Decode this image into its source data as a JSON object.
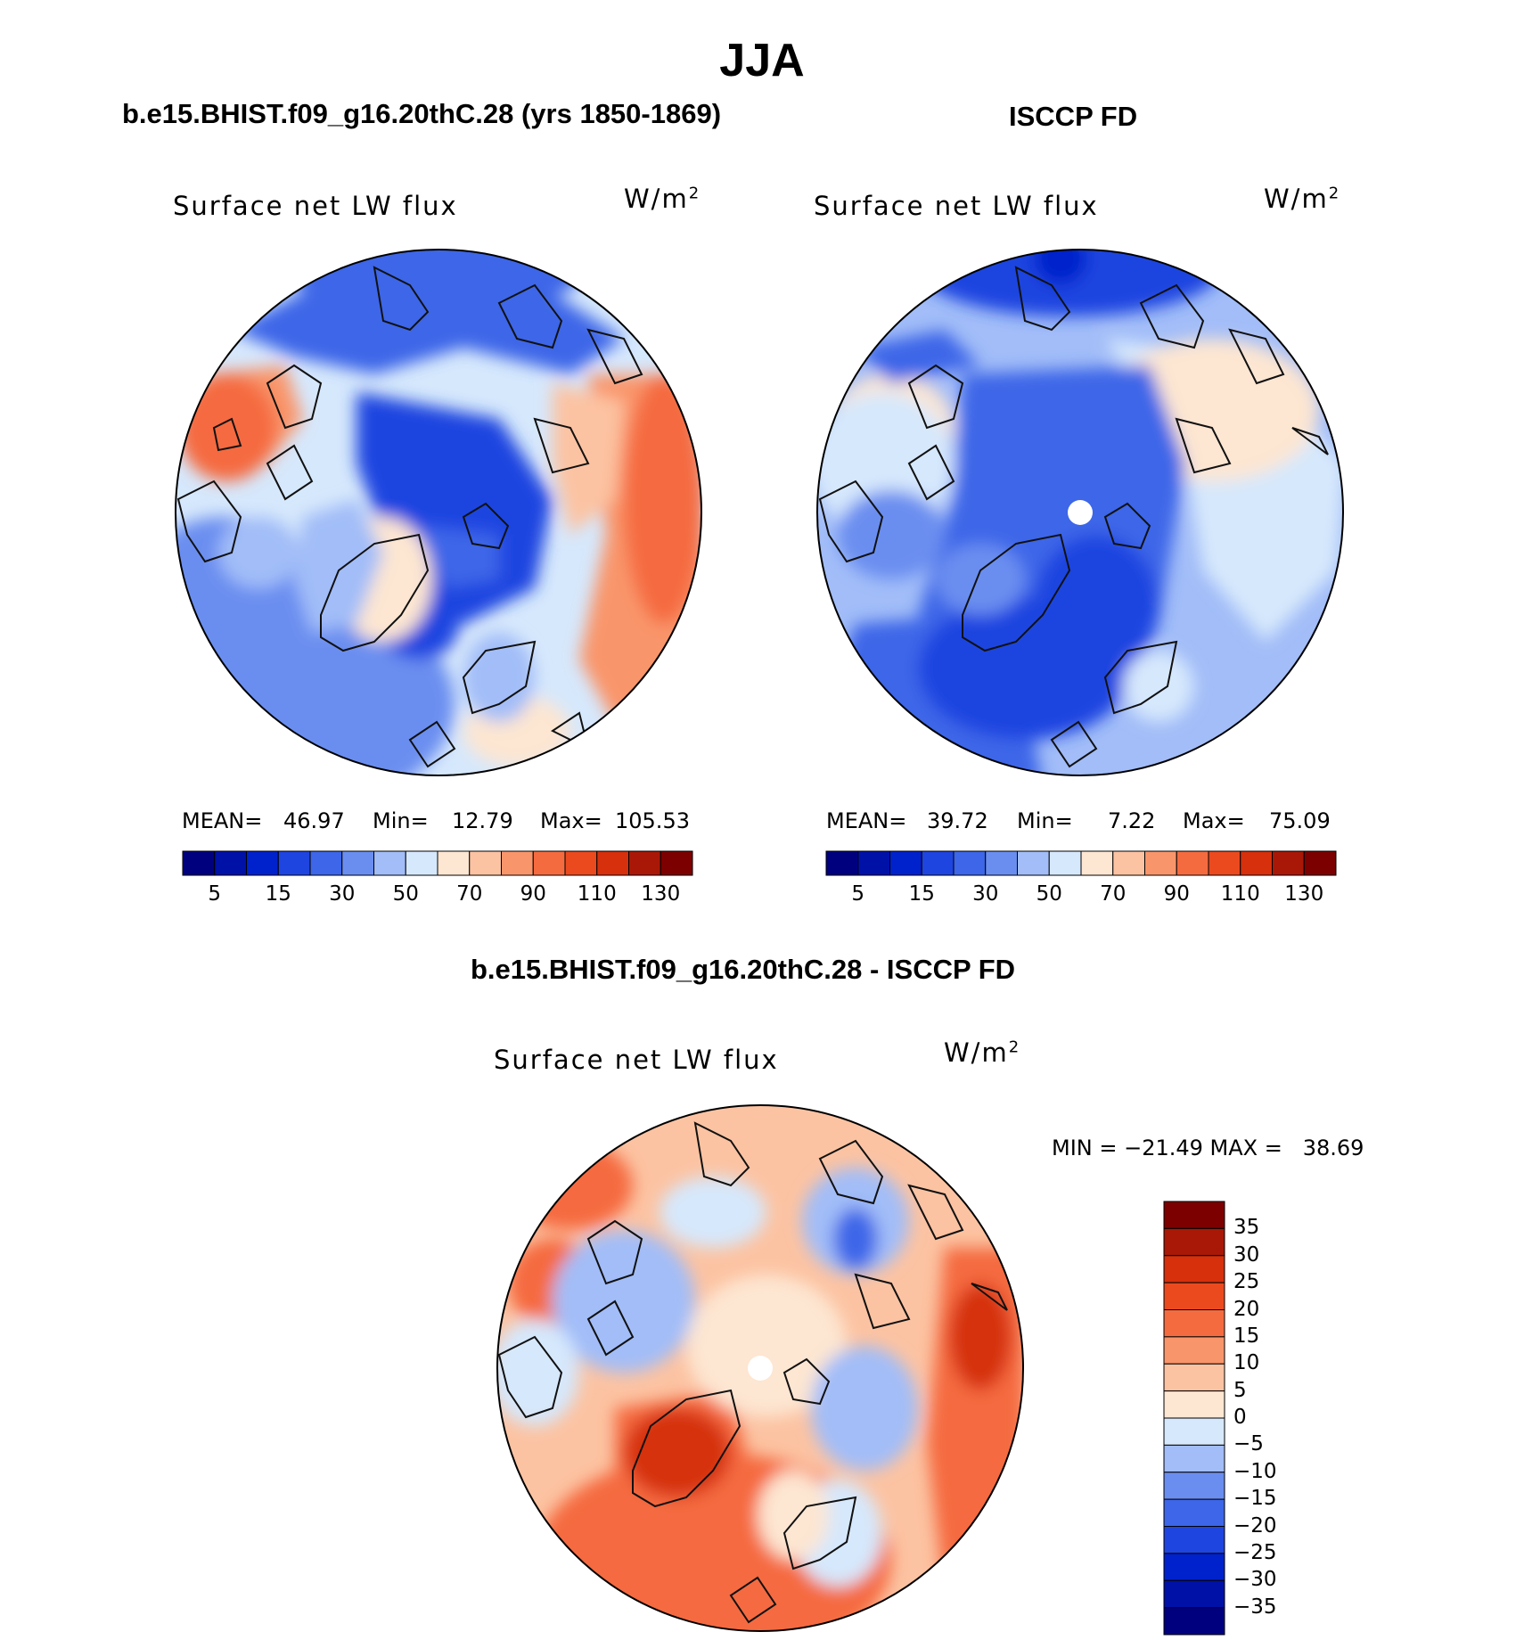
{
  "title": "JJA",
  "panels": [
    {
      "id": "model",
      "title": "b.e15.BHIST.f09_g16.20thC.28 (yrs 1850-1869)",
      "variable": "Surface net LW flux",
      "units": "W/m",
      "units_exp": "2",
      "stats": {
        "mean_label": "MEAN=",
        "mean": "46.97",
        "min_label": "Min=",
        "min": "12.79",
        "max_label": "Max=",
        "max": "105.53"
      }
    },
    {
      "id": "obs",
      "title": "ISCCP FD",
      "variable": "Surface net LW flux",
      "units": "W/m",
      "units_exp": "2",
      "stats": {
        "mean_label": "MEAN=",
        "mean": "39.72",
        "min_label": "Min=",
        "min": "7.22",
        "max_label": "Max=",
        "max": "75.09"
      }
    },
    {
      "id": "diff",
      "title": "b.e15.BHIST.f09_g16.20thC.28 - ISCCP FD",
      "variable": "Surface net LW flux",
      "units": "W/m",
      "units_exp": "2",
      "minmax": "MIN = −21.49 MAX =   38.69"
    }
  ],
  "abs_colorbar": {
    "tick_labels": [
      "5",
      "15",
      "30",
      "50",
      "70",
      "90",
      "110",
      "130"
    ],
    "colors": [
      "#00007f",
      "#0011a8",
      "#0022cc",
      "#1f45e0",
      "#3d66e8",
      "#6a8ef0",
      "#a2bdf8",
      "#d6e8fc",
      "#fde6d2",
      "#fcc3a2",
      "#f9956b",
      "#f56b40",
      "#eb4a1f",
      "#d6300c",
      "#a91806",
      "#7d0000"
    ]
  },
  "diff_colorbar": {
    "tick_labels": [
      "35",
      "30",
      "25",
      "20",
      "15",
      "10",
      "5",
      "0",
      "−5",
      "−10",
      "−15",
      "−20",
      "−25",
      "−30",
      "−35"
    ],
    "colors": [
      "#7d0000",
      "#a91806",
      "#d6300c",
      "#eb4a1f",
      "#f56b40",
      "#f9956b",
      "#fcc3a2",
      "#fde6d2",
      "#d6e8fc",
      "#a2bdf8",
      "#6a8ef0",
      "#3d66e8",
      "#1f45e0",
      "#0022cc",
      "#0011a8",
      "#00007f"
    ]
  }
}
